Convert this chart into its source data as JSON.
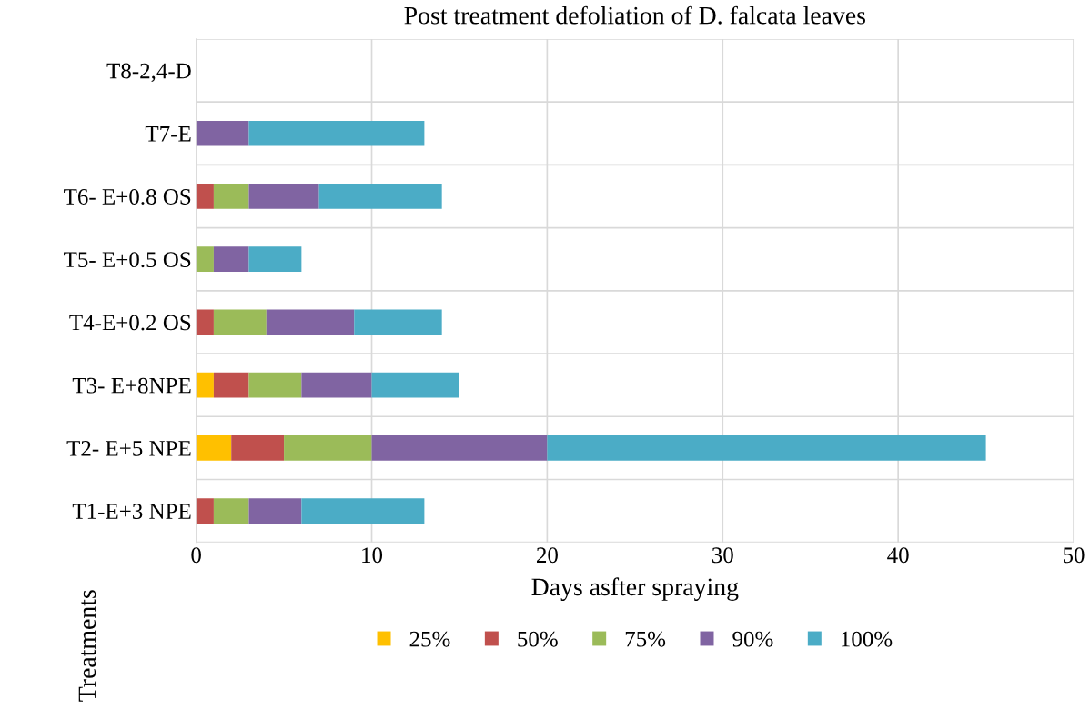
{
  "chart_data": {
    "type": "bar",
    "orientation": "horizontal",
    "stacked": true,
    "title": "Post treatment defoliation of D. falcata leaves",
    "xlabel": "Days asfter spraying",
    "ylabel": "Treatments",
    "categories": [
      "T8-2,4-D",
      "T7-E",
      "T6- E+0.8 OS",
      "T5- E+0.5 OS",
      "T4-E+0.2 OS",
      "T3- E+8NPE",
      "T2- E+5 NPE",
      "T1-E+3 NPE"
    ],
    "series": [
      {
        "name": "25%",
        "color": "#ffc000",
        "values": [
          0,
          0,
          0,
          0,
          0,
          1,
          2,
          0
        ]
      },
      {
        "name": "50%",
        "color": "#c0504d",
        "values": [
          0,
          0,
          1,
          0,
          1,
          2,
          3,
          1
        ]
      },
      {
        "name": "75%",
        "color": "#9bbb59",
        "values": [
          0,
          0,
          2,
          1,
          3,
          3,
          5,
          2
        ]
      },
      {
        "name": "90%",
        "color": "#8064a2",
        "values": [
          0,
          3,
          4,
          2,
          5,
          4,
          10,
          3
        ]
      },
      {
        "name": "100%",
        "color": "#4bacc6",
        "values": [
          0,
          10,
          7,
          3,
          5,
          5,
          25,
          7
        ]
      }
    ],
    "xlim": [
      0,
      50
    ],
    "xticks": [
      0,
      10,
      20,
      30,
      40,
      50
    ],
    "grid": true,
    "legend": "bottom"
  }
}
